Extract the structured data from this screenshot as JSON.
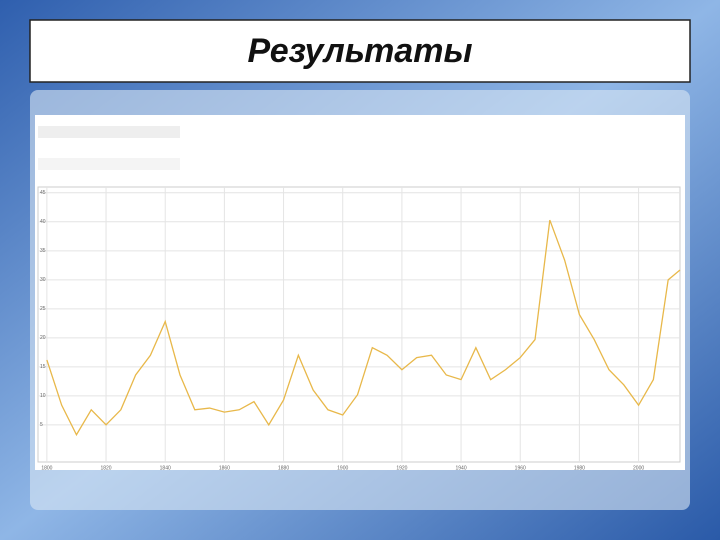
{
  "chart_data": {
    "type": "line",
    "title": "Результаты",
    "x": [
      1800,
      1805,
      1810,
      1815,
      1820,
      1825,
      1830,
      1835,
      1840,
      1845,
      1850,
      1855,
      1860,
      1865,
      1870,
      1875,
      1880,
      1885,
      1890,
      1895,
      1900,
      1905,
      1910,
      1915,
      1920,
      1925,
      1930,
      1935,
      1940,
      1945,
      1950,
      1955,
      1960,
      1965,
      1970,
      1975,
      1980,
      1985,
      1990,
      1995,
      2000,
      2005,
      2010,
      2014
    ],
    "values": [
      16.2,
      8.4,
      3.3,
      7.6,
      5,
      7.6,
      13.6,
      17,
      22.8,
      13.6,
      7.6,
      7.9,
      7.2,
      7.6,
      9,
      5,
      9.3,
      17,
      11,
      7.6,
      6.7,
      10.2,
      18.3,
      17,
      14.5,
      16.6,
      17,
      13.6,
      12.8,
      18.3,
      12.8,
      14.5,
      16.6,
      19.7,
      40.3,
      33.4,
      24,
      19.7,
      14.5,
      11.9,
      8.4,
      12.8,
      30,
      31.7
    ],
    "color": "#e8b84a",
    "xlim": [
      1797,
      2014
    ],
    "ylim": [
      -1.4,
      46
    ],
    "xticks": [
      1800,
      1820,
      1840,
      1860,
      1880,
      1900,
      1920,
      1940,
      1960,
      1980,
      2000
    ],
    "yticks": [
      5,
      10,
      15,
      20,
      25,
      30,
      35,
      40,
      45
    ],
    "grid": true
  }
}
